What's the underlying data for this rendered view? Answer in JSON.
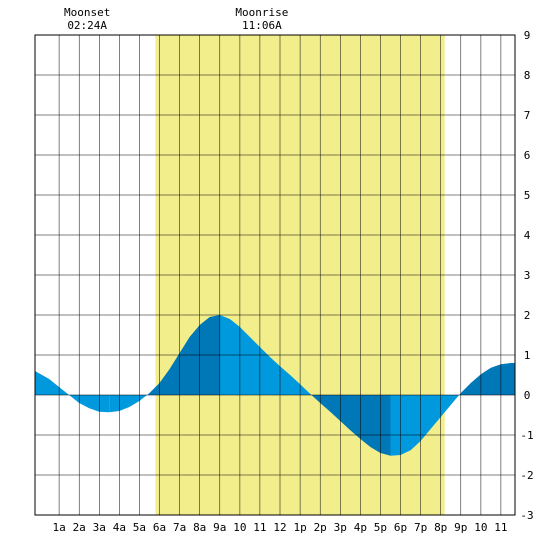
{
  "chart_data": {
    "type": "area",
    "title": "",
    "xlabel": "",
    "ylabel": "",
    "x_range_hours": [
      -0.2,
      23.7
    ],
    "ylim": [
      -3,
      9
    ],
    "y_ticks": [
      -3,
      -2,
      -1,
      0,
      1,
      2,
      3,
      4,
      5,
      6,
      7,
      8,
      9
    ],
    "x_tick_labels": [
      "1a",
      "2a",
      "3a",
      "4a",
      "5a",
      "6a",
      "7a",
      "8a",
      "9a",
      "10",
      "11",
      "12",
      "1p",
      "2p",
      "3p",
      "4p",
      "5p",
      "6p",
      "7p",
      "8p",
      "9p",
      "10",
      "11"
    ],
    "grid": true,
    "daylight_hours": [
      5.8,
      20.2
    ],
    "moon_events": [
      {
        "label": "Moonset",
        "time": "02:24A",
        "hour": 2.4
      },
      {
        "label": "Moonrise",
        "time": "11:06A",
        "hour": 11.1
      }
    ],
    "series": [
      {
        "x": [
          -0.2,
          0.5,
          1.0,
          1.5,
          2.0,
          2.5,
          3.0,
          3.5,
          4.0,
          4.5,
          5.0,
          5.5,
          6.0,
          6.5,
          7.0,
          7.5,
          8.0,
          8.5,
          9.0,
          9.5,
          10.0,
          10.5,
          11.0,
          11.5,
          12.0,
          12.5,
          13.0,
          13.5,
          14.0,
          14.5,
          15.0,
          15.5,
          16.0,
          16.5,
          17.0,
          17.5,
          18.0,
          18.5,
          19.0,
          19.5,
          20.0,
          20.5,
          21.0,
          21.5,
          22.0,
          22.5,
          23.0,
          23.5,
          23.7
        ],
        "y": [
          0.6,
          0.4,
          0.2,
          0.0,
          -0.2,
          -0.33,
          -0.42,
          -0.43,
          -0.4,
          -0.3,
          -0.15,
          0.05,
          0.3,
          0.65,
          1.05,
          1.45,
          1.75,
          1.95,
          2.0,
          1.9,
          1.7,
          1.45,
          1.2,
          0.95,
          0.72,
          0.5,
          0.27,
          0.03,
          -0.2,
          -0.42,
          -0.65,
          -0.88,
          -1.1,
          -1.3,
          -1.45,
          -1.52,
          -1.5,
          -1.38,
          -1.15,
          -0.85,
          -0.55,
          -0.25,
          0.05,
          0.3,
          0.52,
          0.68,
          0.77,
          0.8,
          0.8
        ]
      }
    ],
    "colors": {
      "daylight": "#f2ee8c",
      "tide": "#0099dd",
      "tide_dark": "#0077b6",
      "grid": "#000000"
    }
  }
}
